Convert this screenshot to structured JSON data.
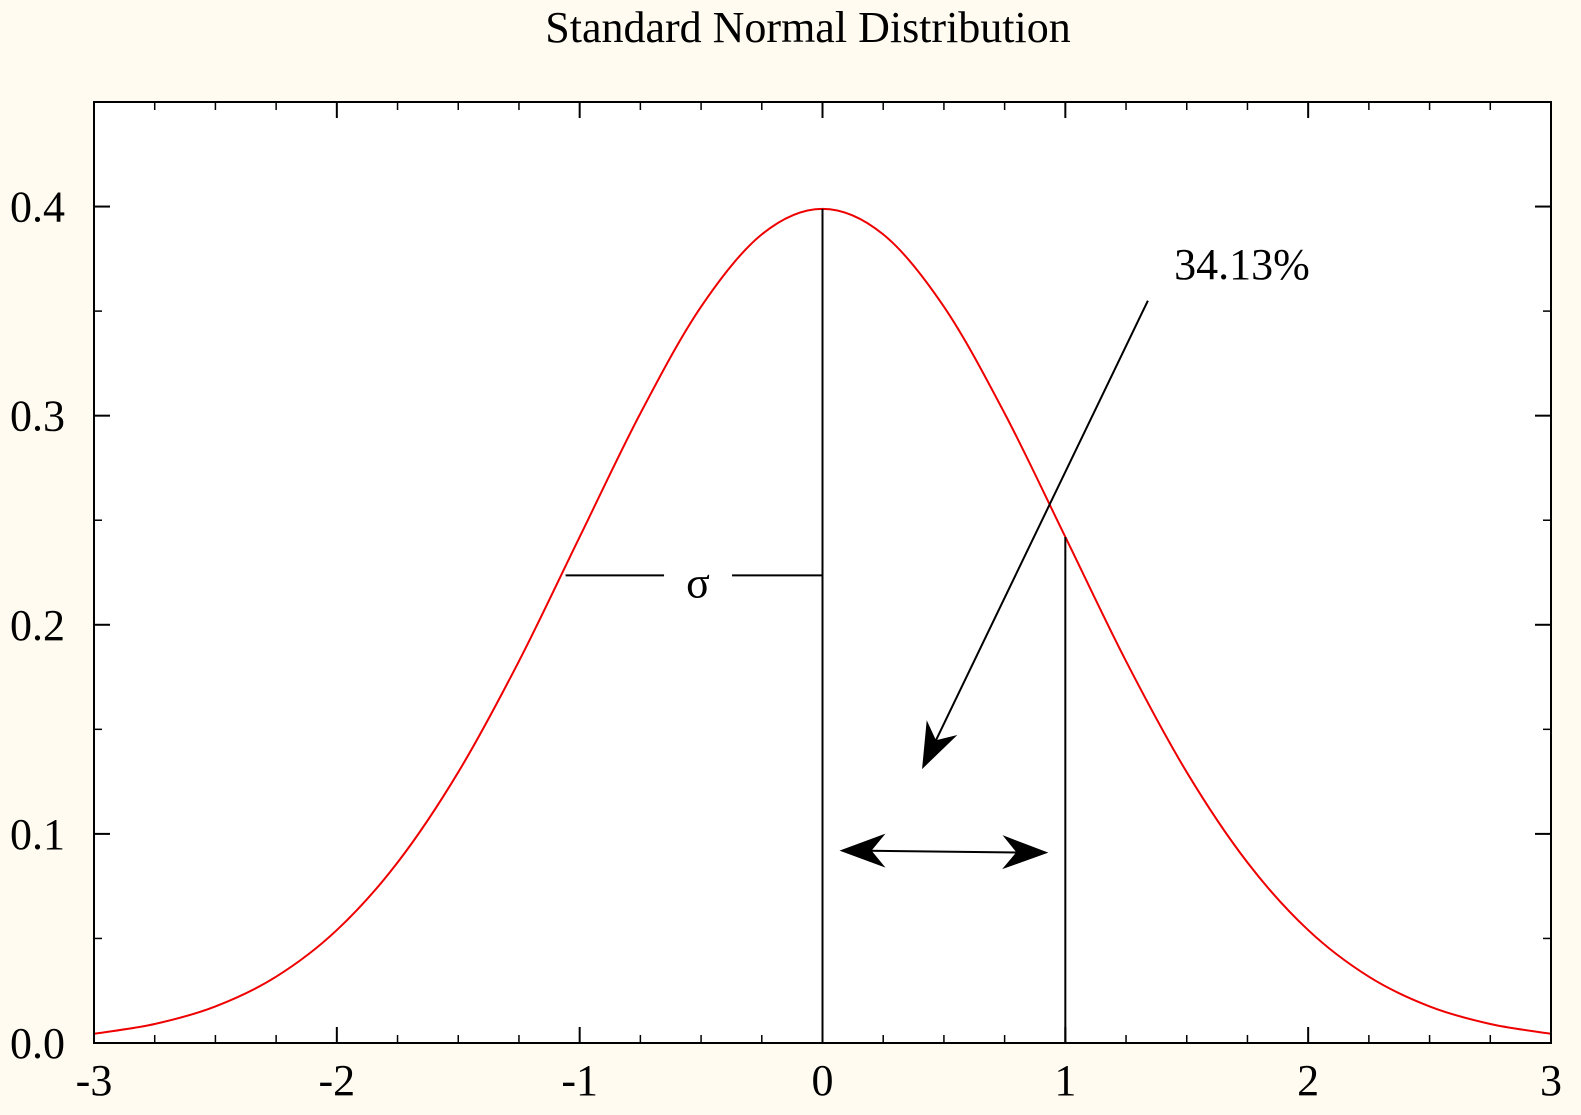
{
  "chart_data": {
    "type": "line",
    "title": "Standard Normal Distribution",
    "xlabel": "",
    "ylabel": "",
    "xlim": [
      -3,
      3
    ],
    "ylim": [
      0,
      0.45
    ],
    "grid": false,
    "x_ticks": [
      -3,
      -2,
      -1,
      0,
      1,
      2,
      3
    ],
    "x_tick_labels": [
      "-3",
      "-2",
      "-1",
      "0",
      "1",
      "2",
      "3"
    ],
    "y_ticks": [
      0,
      0.1,
      0.2,
      0.3,
      0.4
    ],
    "y_tick_labels": [
      "0.0",
      "0.1",
      "0.2",
      "0.3",
      "0.4"
    ],
    "series": [
      {
        "color": "#ee0000",
        "function": "standard normal pdf",
        "x": [
          -3.0,
          -2.75,
          -2.5,
          -2.25,
          -2.0,
          -1.75,
          -1.5,
          -1.25,
          -1.0,
          -0.75,
          -0.5,
          -0.25,
          0.0,
          0.25,
          0.5,
          0.75,
          1.0,
          1.25,
          1.5,
          1.75,
          2.0,
          2.25,
          2.5,
          2.75,
          3.0
        ],
        "values": [
          0.0044,
          0.0091,
          0.0175,
          0.0317,
          0.054,
          0.0863,
          0.1295,
          0.1826,
          0.242,
          0.3011,
          0.3521,
          0.3867,
          0.3989,
          0.3867,
          0.3521,
          0.3011,
          0.242,
          0.1826,
          0.1295,
          0.0863,
          0.054,
          0.0317,
          0.0175,
          0.0091,
          0.0044
        ]
      }
    ],
    "annotations": {
      "sigma_label": "σ",
      "percent_label": "34.13%",
      "sigma_bar": {
        "y": 0.2236,
        "x_from": -1.058,
        "x_to": 0
      },
      "vertical_lines": [
        {
          "x": 0,
          "y_top": 0.3989
        },
        {
          "x": 1,
          "y_top": 0.242
        }
      ],
      "double_arrow": {
        "y": 0.092,
        "x_from": 0.07,
        "x_to": 0.93
      },
      "pointer_arrow": {
        "x_from": 1.34,
        "y_from": 0.355,
        "x_to": 0.41,
        "y_to": 0.131
      }
    }
  }
}
